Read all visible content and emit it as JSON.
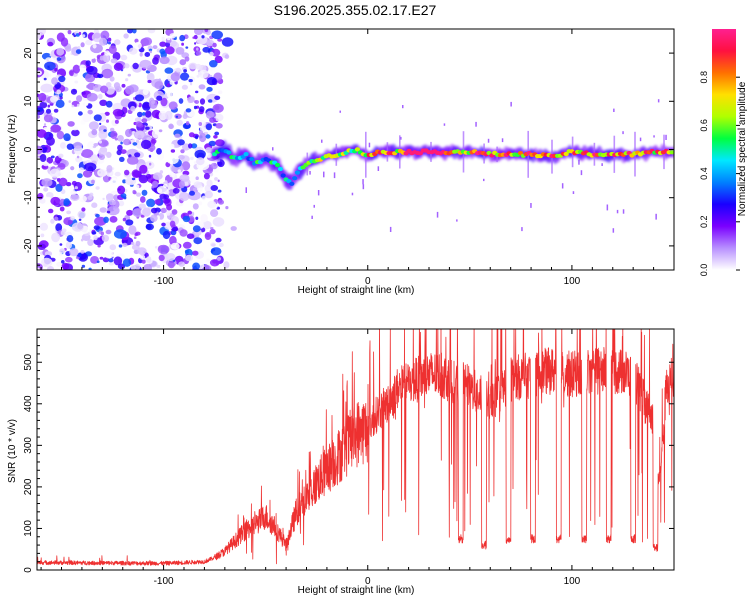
{
  "figure_title": "S196.2025.355.02.17.E27",
  "chart_data": [
    {
      "type": "heatmap",
      "name": "spectrogram",
      "title": "S196.2025.355.02.17.E27",
      "xlabel": "Height of straight line (km)",
      "ylabel": "Frequency (Hz)",
      "xlim": [
        -162,
        150
      ],
      "ylim": [
        -25,
        25
      ],
      "xticks": [
        -100,
        0,
        100
      ],
      "xtick_labels": [
        "-100",
        "0",
        "100"
      ],
      "yticks": [
        -20,
        -10,
        0,
        10,
        20
      ],
      "ytick_labels": [
        "-20",
        "-10",
        "0",
        "10",
        "20"
      ],
      "noise_region_x": [
        -162,
        -72
      ],
      "ridge": {
        "x": [
          -75,
          -70,
          -65,
          -60,
          -55,
          -50,
          -45,
          -40,
          -37,
          -35,
          -30,
          -25,
          -20,
          -15,
          -10,
          -5,
          0,
          5,
          10,
          20,
          30,
          40,
          50,
          60,
          70,
          80,
          90,
          100,
          110,
          120,
          130,
          140,
          150
        ],
        "y": [
          -1,
          0,
          -2,
          -1,
          -3,
          -2,
          -3,
          -6,
          -7,
          -5,
          -3,
          -2,
          -1.5,
          -1,
          -0.5,
          0,
          -1.5,
          -0.5,
          -0.5,
          -0.5,
          -0.5,
          -0.5,
          -0.5,
          -1,
          -1,
          -1,
          -1.5,
          -0.5,
          -1,
          -1,
          -1,
          -0.5,
          -0.5
        ]
      },
      "colorbar": {
        "label": "Normalized spectral amplitude",
        "range": [
          0,
          1
        ],
        "ticks": [
          0.0,
          0.2,
          0.4,
          0.6,
          0.8
        ],
        "tick_labels": [
          "0.0",
          "0.2",
          "0.4",
          "0.6",
          "0.8"
        ],
        "colors": [
          "#ffffff",
          "#b890ff",
          "#7a00ff",
          "#1a00ff",
          "#0080ff",
          "#00e8ff",
          "#00ff40",
          "#b0ff00",
          "#ffe000",
          "#ff7000",
          "#ff1040",
          "#ff2090"
        ]
      }
    },
    {
      "type": "line",
      "name": "snr",
      "xlabel": "Height of straight line (km)",
      "ylabel": "SNR (10 * v/v)",
      "xlim": [
        -162,
        150
      ],
      "ylim": [
        0,
        580
      ],
      "xticks": [
        -100,
        0,
        100
      ],
      "xtick_labels": [
        "-100",
        "0",
        "100"
      ],
      "yticks": [
        0,
        100,
        200,
        300,
        400,
        500
      ],
      "ytick_labels": [
        "0",
        "100",
        "200",
        "300",
        "400",
        "500"
      ],
      "color": "#ee3030",
      "trend": {
        "x": [
          -162,
          -100,
          -80,
          -75,
          -70,
          -65,
          -60,
          -55,
          -50,
          -45,
          -40,
          -35,
          -30,
          -25,
          -20,
          -15,
          -10,
          -5,
          0,
          5,
          10,
          15,
          20,
          25,
          30,
          35,
          40,
          45,
          50,
          55,
          60,
          65,
          70,
          80,
          90,
          100,
          110,
          120,
          130,
          140,
          143,
          146,
          150
        ],
        "y": [
          18,
          16,
          20,
          30,
          45,
          70,
          95,
          110,
          130,
          100,
          60,
          140,
          170,
          210,
          240,
          270,
          300,
          330,
          340,
          380,
          400,
          440,
          450,
          460,
          470,
          470,
          460,
          450,
          440,
          420,
          400,
          430,
          460,
          470,
          480,
          470,
          480,
          480,
          470,
          350,
          200,
          430,
          470
        ]
      },
      "dropouts": [
        {
          "x": 45.5,
          "y": 75
        },
        {
          "x": 57,
          "y": 60
        },
        {
          "x": 69,
          "y": 70
        },
        {
          "x": 81,
          "y": 75
        },
        {
          "x": 93.5,
          "y": 75
        },
        {
          "x": 106,
          "y": 75
        },
        {
          "x": 118,
          "y": 75
        },
        {
          "x": 130,
          "y": 75
        },
        {
          "x": 141,
          "y": 55
        }
      ]
    }
  ]
}
